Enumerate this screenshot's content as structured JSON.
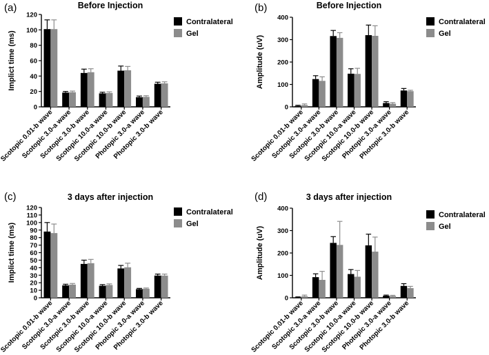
{
  "colors": {
    "contralateral": "#000000",
    "gel": "#8c8c8c",
    "axis": "#000000",
    "background": "#ffffff"
  },
  "chart_data": [
    {
      "panel": "(a)",
      "type": "bar",
      "title": "Before Injection",
      "ylabel": "Implict time (ms)",
      "xlabel": "",
      "ylim": [
        0,
        120
      ],
      "yticks": [
        0,
        20,
        40,
        60,
        80,
        100,
        120
      ],
      "categories": [
        "Scotopic 0.01-b wave",
        "Scotopic 3.0-a wave",
        "Scotopic 3.0-b wave",
        "Scotopic 10.0-a wave",
        "Scotopic 10.0-b wave",
        "Photopic 3.0-a wave",
        "Photopic 3.0-b wave"
      ],
      "series": [
        {
          "name": "Contralateral",
          "values": [
            101,
            18.5,
            44,
            17.5,
            47,
            12.5,
            30
          ],
          "errors": [
            12,
            1.5,
            5,
            1.5,
            6,
            1.5,
            2
          ]
        },
        {
          "name": "Gel",
          "values": [
            101,
            19,
            45,
            18,
            47.5,
            13,
            30.5
          ],
          "errors": [
            12,
            1.5,
            4.5,
            1.5,
            5,
            1.5,
            2
          ]
        }
      ],
      "legend": "top-right"
    },
    {
      "panel": "(b)",
      "type": "bar",
      "title": "Before Injection",
      "ylabel": "Amplitude (uV)",
      "xlabel": "",
      "ylim": [
        0,
        400
      ],
      "yticks": [
        0,
        100,
        200,
        300,
        400
      ],
      "categories": [
        "Scotopic 0.01-b wave",
        "Scotopic 3.0-a wave",
        "Scotopic 3.0-b wave",
        "Scotopic 10.0-a wave",
        "Scotopic 10.0-b wave",
        "Photopic 3.0-a wave",
        "Photopic 3.0-b wave"
      ],
      "series": [
        {
          "name": "Contralateral",
          "values": [
            4,
            124,
            316,
            148,
            320,
            17,
            73
          ],
          "errors": [
            3,
            15,
            25,
            22,
            45,
            6,
            9
          ]
        },
        {
          "name": "Gel",
          "values": [
            8,
            116,
            308,
            147,
            317,
            14,
            70
          ],
          "errors": [
            5,
            18,
            23,
            25,
            45,
            5,
            4
          ]
        }
      ],
      "legend": "top-right"
    },
    {
      "panel": "(c)",
      "type": "bar",
      "title": "3 days after injection",
      "ylabel": "Implict time (ms)",
      "xlabel": "",
      "ylim": [
        0,
        120
      ],
      "yticks": [
        0,
        10,
        20,
        30,
        40,
        50,
        60,
        70,
        80,
        90,
        100,
        110,
        120
      ],
      "categories": [
        "Scotopic 0.01-b wave",
        "Scotopic 3.0-a wave",
        "Scotopic 3.0-b wave",
        "Scotopic 10.0-a wave",
        "Scotopic 10.0-b wave",
        "Photopic 3.0-a wave",
        "Photopic 3.0-b wave"
      ],
      "series": [
        {
          "name": "Contralateral",
          "values": [
            88,
            16.5,
            45,
            16,
            39,
            11.5,
            29.5
          ],
          "errors": [
            12,
            1.5,
            5,
            1.5,
            4,
            1,
            2
          ]
        },
        {
          "name": "Gel",
          "values": [
            86,
            17.5,
            46,
            17,
            40.5,
            12,
            29.5
          ],
          "errors": [
            12,
            1.5,
            5,
            1.5,
            5.5,
            1,
            2
          ]
        }
      ],
      "legend": "top-right"
    },
    {
      "panel": "(d)",
      "type": "bar",
      "title": "3 days after injection",
      "ylabel": "Amplitude (uV)",
      "xlabel": "",
      "ylim": [
        0,
        400
      ],
      "yticks": [
        0,
        100,
        200,
        300,
        400
      ],
      "categories": [
        "Scotopic 0.01-b wave",
        "Scotopic 3.0-a wave",
        "Scotopic 3.0-b wave",
        "Scotopic 10.0-a wave",
        "Scotopic 10.0-b wave",
        "Photopic 3.0-a wave",
        "Photopic 3.0-b wave"
      ],
      "series": [
        {
          "name": "Contralateral",
          "values": [
            2,
            92,
            245,
            106,
            234,
            9,
            53
          ],
          "errors": [
            2,
            15,
            28,
            20,
            50,
            3,
            10
          ]
        },
        {
          "name": "Gel",
          "values": [
            7,
            80,
            236,
            94,
            206,
            8,
            43
          ],
          "errors": [
            5,
            38,
            105,
            28,
            65,
            3,
            8
          ]
        }
      ],
      "legend": "top-right"
    }
  ]
}
